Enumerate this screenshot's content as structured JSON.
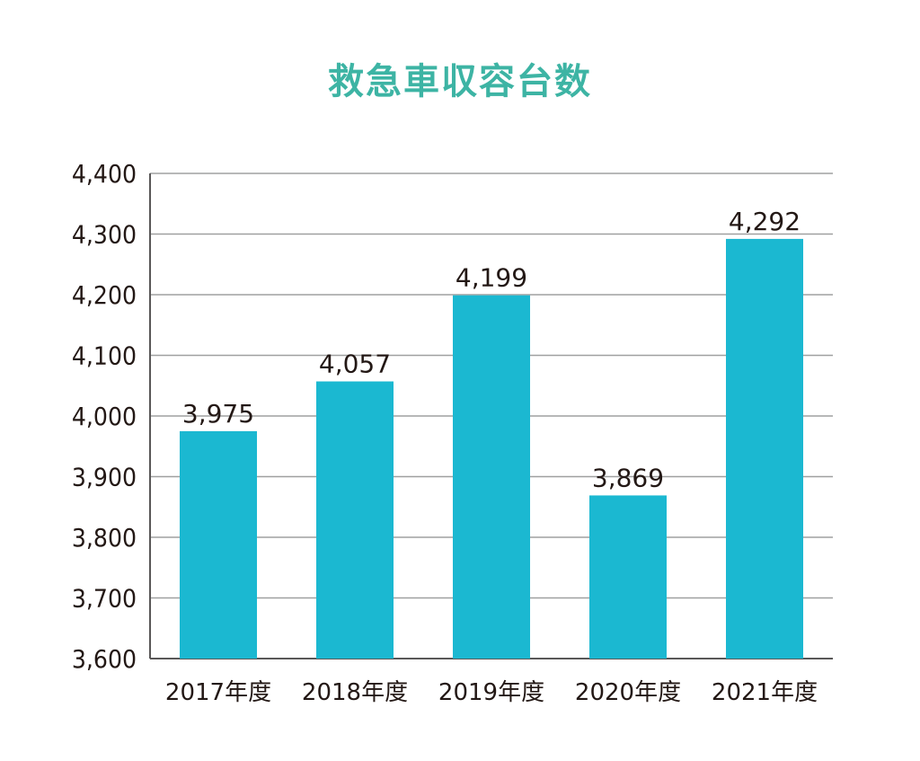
{
  "colors": {
    "title": "#3db4a4",
    "bar": "#1bb8d1",
    "grid": "#9fa0a0",
    "axis": "#595757",
    "text": "#231815"
  },
  "chart_data": {
    "type": "bar",
    "title": "救急車収容台数",
    "xlabel": "",
    "ylabel": "",
    "categories": [
      "2017年度",
      "2018年度",
      "2019年度",
      "2020年度",
      "2021年度"
    ],
    "values": [
      3975,
      4057,
      4199,
      3869,
      4292
    ],
    "data_labels": [
      "3,975",
      "4,057",
      "4,199",
      "3,869",
      "4,292"
    ],
    "ylim": [
      3600,
      4400
    ],
    "yticks": [
      3600,
      3700,
      3800,
      3900,
      4000,
      4100,
      4200,
      4300,
      4400
    ],
    "ytick_labels": [
      "3,600",
      "3,700",
      "3,800",
      "3,900",
      "4,000",
      "4,100",
      "4,200",
      "4,300",
      "4,400"
    ],
    "grid": true,
    "legend": "none"
  }
}
